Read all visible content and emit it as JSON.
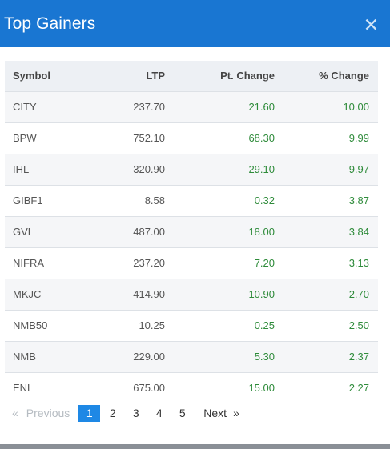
{
  "modal": {
    "title": "Top Gainers",
    "close_icon": "close-icon"
  },
  "table": {
    "headers": [
      "Symbol",
      "LTP",
      "Pt. Change",
      "% Change"
    ],
    "rows": [
      [
        "CITY",
        "237.70",
        "21.60",
        "10.00"
      ],
      [
        "BPW",
        "752.10",
        "68.30",
        "9.99"
      ],
      [
        "IHL",
        "320.90",
        "29.10",
        "9.97"
      ],
      [
        "GIBF1",
        "8.58",
        "0.32",
        "3.87"
      ],
      [
        "GVL",
        "487.00",
        "18.00",
        "3.84"
      ],
      [
        "NIFRA",
        "237.20",
        "7.20",
        "3.13"
      ],
      [
        "MKJC",
        "414.90",
        "10.90",
        "2.70"
      ],
      [
        "NMB50",
        "10.25",
        "0.25",
        "2.50"
      ],
      [
        "NMB",
        "229.00",
        "5.30",
        "2.37"
      ],
      [
        "ENL",
        "675.00",
        "15.00",
        "2.27"
      ]
    ]
  },
  "pagination": {
    "prev_arrow": "«",
    "prev": "Previous",
    "pages": [
      "1",
      "2",
      "3",
      "4",
      "5"
    ],
    "active": "1",
    "next": "Next",
    "next_arrow": "»"
  },
  "colors": {
    "header_bg": "#1976d2",
    "gain_text": "#2e8b3a",
    "active_page": "#1e88e5"
  }
}
